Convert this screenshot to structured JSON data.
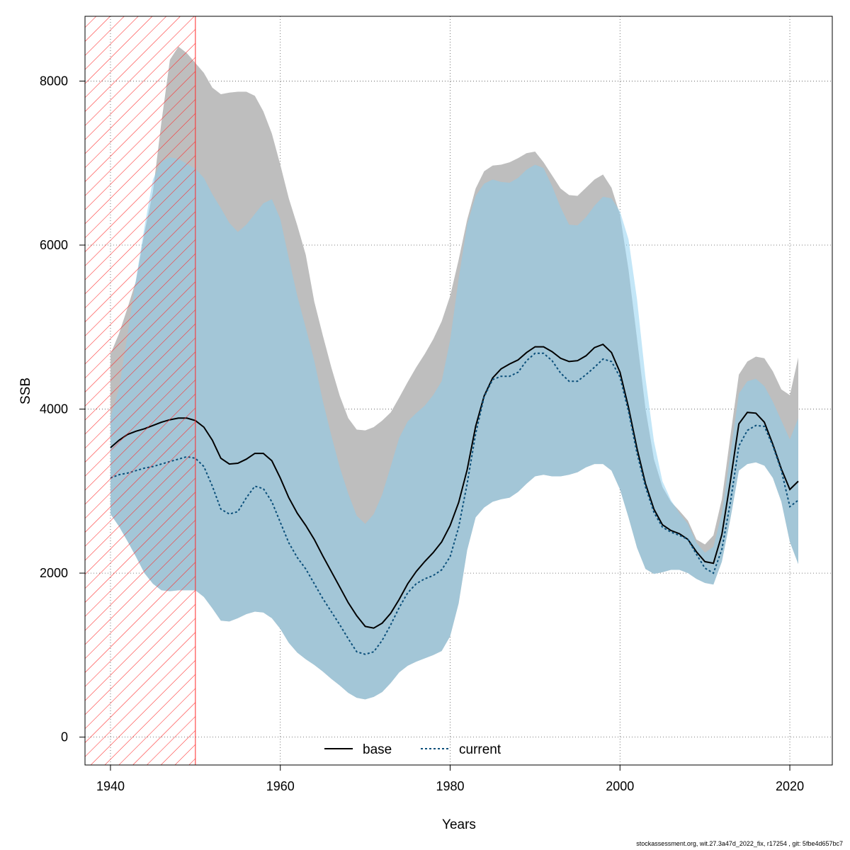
{
  "chart_data": {
    "type": "area",
    "xlabel": "Years",
    "ylabel": "SSB",
    "xlim": [
      1937,
      2025
    ],
    "ylim": [
      -340,
      8790
    ],
    "x_ticks": [
      1940,
      1960,
      1980,
      2000,
      2020
    ],
    "y_ticks": [
      0,
      2000,
      4000,
      6000,
      8000
    ],
    "grid": true,
    "legend_position": "bottom",
    "shaded_period": {
      "start": 1937,
      "end": 1950,
      "color": "#ff2a2a"
    },
    "x": [
      1940,
      1941,
      1942,
      1943,
      1944,
      1945,
      1946,
      1947,
      1948,
      1949,
      1950,
      1951,
      1952,
      1953,
      1954,
      1955,
      1956,
      1957,
      1958,
      1959,
      1960,
      1961,
      1962,
      1963,
      1964,
      1965,
      1966,
      1967,
      1968,
      1969,
      1970,
      1971,
      1972,
      1973,
      1974,
      1975,
      1976,
      1977,
      1978,
      1979,
      1980,
      1981,
      1982,
      1983,
      1984,
      1985,
      1986,
      1987,
      1988,
      1989,
      1990,
      1991,
      1992,
      1993,
      1994,
      1995,
      1996,
      1997,
      1998,
      1999,
      2000,
      2001,
      2002,
      2003,
      2004,
      2005,
      2006,
      2007,
      2008,
      2009,
      2010,
      2011,
      2012,
      2013,
      2014,
      2015,
      2016,
      2017,
      2018,
      2019,
      2020,
      2021
    ],
    "series": [
      {
        "name": "base",
        "color": "#000000",
        "band_color": "#bebebe",
        "line_style": "solid",
        "values": [
          3530,
          3620,
          3690,
          3730,
          3760,
          3800,
          3840,
          3870,
          3890,
          3890,
          3860,
          3780,
          3620,
          3400,
          3330,
          3340,
          3390,
          3460,
          3460,
          3370,
          3160,
          2920,
          2730,
          2580,
          2410,
          2210,
          2020,
          1830,
          1640,
          1480,
          1350,
          1330,
          1390,
          1510,
          1680,
          1870,
          2020,
          2140,
          2250,
          2380,
          2580,
          2860,
          3260,
          3790,
          4160,
          4380,
          4490,
          4550,
          4600,
          4690,
          4760,
          4760,
          4700,
          4620,
          4580,
          4590,
          4650,
          4750,
          4790,
          4690,
          4450,
          4020,
          3520,
          3090,
          2780,
          2590,
          2520,
          2480,
          2410,
          2260,
          2140,
          2120,
          2470,
          3120,
          3820,
          3960,
          3950,
          3840,
          3570,
          3270,
          3020,
          3120
        ]
      },
      {
        "name": "current",
        "color": "#0b4f7a",
        "band_color": "#87cef0",
        "line_style": "dotted",
        "values": [
          3160,
          3200,
          3220,
          3250,
          3280,
          3300,
          3330,
          3360,
          3390,
          3420,
          3400,
          3300,
          3060,
          2780,
          2720,
          2750,
          2920,
          3060,
          3030,
          2870,
          2620,
          2370,
          2190,
          2050,
          1870,
          1690,
          1530,
          1370,
          1200,
          1040,
          1010,
          1040,
          1180,
          1370,
          1580,
          1760,
          1870,
          1930,
          1970,
          2040,
          2200,
          2560,
          3090,
          3700,
          4150,
          4360,
          4400,
          4400,
          4450,
          4590,
          4680,
          4680,
          4590,
          4440,
          4340,
          4340,
          4420,
          4510,
          4610,
          4580,
          4390,
          3970,
          3460,
          3050,
          2740,
          2560,
          2500,
          2460,
          2410,
          2230,
          2060,
          2000,
          2290,
          2860,
          3550,
          3740,
          3800,
          3790,
          3550,
          3250,
          2810,
          2890
        ]
      }
    ],
    "bands": [
      {
        "name": "base",
        "lower": [
          2720,
          2570,
          2390,
          2200,
          2000,
          1870,
          1790,
          1780,
          1790,
          1790,
          1790,
          1710,
          1570,
          1420,
          1410,
          1450,
          1500,
          1530,
          1520,
          1450,
          1320,
          1150,
          1030,
          950,
          880,
          800,
          710,
          630,
          540,
          480,
          460,
          490,
          550,
          660,
          790,
          870,
          920,
          960,
          1000,
          1050,
          1230,
          1630,
          2280,
          2680,
          2800,
          2870,
          2900,
          2920,
          2990,
          3090,
          3180,
          3200,
          3180,
          3180,
          3200,
          3230,
          3290,
          3330,
          3330,
          3250,
          3020,
          2680,
          2310,
          2050,
          1990,
          2010,
          2040,
          2040,
          2000,
          1930,
          1880,
          1860,
          2140,
          2660,
          3250,
          3330,
          3350,
          3310,
          3160,
          2870,
          2380,
          2110
        ],
        "upper": [
          4670,
          4920,
          5230,
          5560,
          6150,
          6650,
          7500,
          8260,
          8420,
          8340,
          8220,
          8100,
          7920,
          7840,
          7860,
          7870,
          7870,
          7820,
          7630,
          7360,
          6980,
          6570,
          6240,
          5880,
          5310,
          4900,
          4510,
          4160,
          3890,
          3750,
          3740,
          3780,
          3860,
          3960,
          4140,
          4330,
          4510,
          4670,
          4850,
          5070,
          5380,
          5820,
          6310,
          6690,
          6900,
          6970,
          6980,
          7010,
          7060,
          7120,
          7140,
          7010,
          6850,
          6690,
          6610,
          6600,
          6700,
          6800,
          6860,
          6700,
          6370,
          5700,
          4860,
          4000,
          3390,
          3050,
          2870,
          2760,
          2640,
          2410,
          2350,
          2460,
          2900,
          3670,
          4420,
          4580,
          4640,
          4620,
          4460,
          4240,
          4170,
          4630
        ]
      },
      {
        "name": "current",
        "lower": [
          2720,
          2570,
          2390,
          2200,
          2000,
          1870,
          1790,
          1780,
          1790,
          1790,
          1790,
          1710,
          1570,
          1420,
          1410,
          1450,
          1500,
          1530,
          1520,
          1450,
          1320,
          1150,
          1030,
          950,
          880,
          800,
          710,
          630,
          540,
          480,
          460,
          490,
          550,
          660,
          790,
          870,
          920,
          960,
          1000,
          1050,
          1230,
          1630,
          2280,
          2680,
          2800,
          2870,
          2900,
          2920,
          2990,
          3090,
          3180,
          3200,
          3180,
          3180,
          3200,
          3230,
          3290,
          3330,
          3330,
          3250,
          3020,
          2680,
          2310,
          2050,
          1990,
          2010,
          2040,
          2040,
          2000,
          1930,
          1880,
          1860,
          2140,
          2660,
          3250,
          3330,
          3350,
          3310,
          3160,
          2870,
          2380,
          2110
        ],
        "upper": [
          3900,
          4250,
          4900,
          5580,
          6220,
          6800,
          7020,
          7070,
          7050,
          6990,
          6930,
          6820,
          6620,
          6450,
          6270,
          6160,
          6250,
          6380,
          6510,
          6560,
          6320,
          5840,
          5380,
          4990,
          4590,
          4100,
          3680,
          3290,
          2970,
          2700,
          2600,
          2720,
          2960,
          3300,
          3650,
          3850,
          3950,
          4040,
          4170,
          4340,
          4840,
          5590,
          6250,
          6600,
          6750,
          6800,
          6770,
          6760,
          6820,
          6920,
          6980,
          6940,
          6720,
          6460,
          6250,
          6240,
          6340,
          6480,
          6590,
          6570,
          6410,
          6070,
          5340,
          4380,
          3610,
          3120,
          2890,
          2730,
          2600,
          2370,
          2250,
          2320,
          2730,
          3450,
          4190,
          4340,
          4370,
          4280,
          4090,
          3860,
          3630,
          3890
        ]
      }
    ]
  },
  "footer_text": "stockassessment.org, wit.27.3a47d_2022_fix, r17254 , git: 5fbe4d657bc7"
}
